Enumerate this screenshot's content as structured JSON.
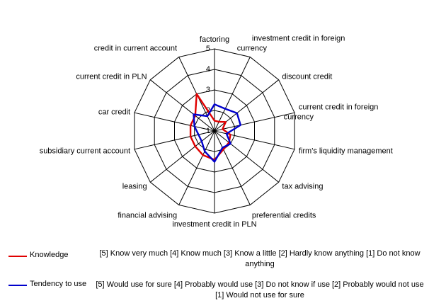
{
  "chart_data": {
    "type": "radar",
    "title": "",
    "categories": [
      "factoring",
      "investment credit in foreign currency",
      "discount credit",
      "current credit in foreign currency",
      "firm's liquidity management",
      "tax advising",
      "preferential credits",
      "investment credit in PLN",
      "financial advising",
      "leasing",
      "subsidiary current account",
      "car credit",
      "current credit in PLN",
      "credit in current account"
    ],
    "radial_ticks": [
      "1",
      "2",
      "3",
      "4",
      "5"
    ],
    "rmin": 1,
    "rmax": 5,
    "series": [
      {
        "name": "Knowledge",
        "color": "#e00000",
        "values": [
          1.5,
          1.5,
          1.7,
          1.4,
          1.8,
          1.9,
          2.0,
          2.4,
          2.3,
          2.2,
          2.2,
          2.2,
          2.2,
          3.0
        ],
        "note": "[5] Know very much [4] Know much [3] Know a little [2] Hardly know anything [1] Do not know anything"
      },
      {
        "name": "Tendency to use",
        "color": "#0000cc",
        "values": [
          2.3,
          2.2,
          2.4,
          2.3,
          1.6,
          2.0,
          1.9,
          2.5,
          2.1,
          1.8,
          1.8,
          2.0,
          2.3,
          1.8
        ],
        "note": "[5] Would use for sure [4] Probably would use [3] Do not know if use [2] Probably would not use [1] Would not use for sure"
      }
    ]
  }
}
